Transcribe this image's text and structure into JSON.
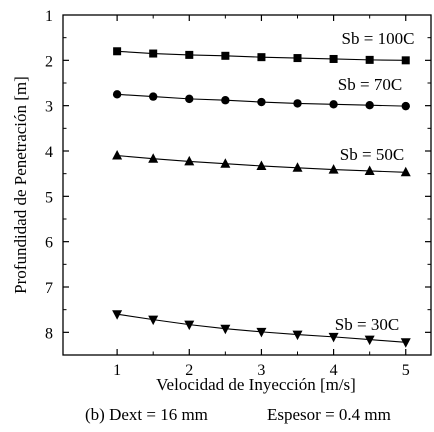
{
  "chart_data": {
    "type": "line",
    "title": "",
    "xlabel": "Velocidad de Inyección [m/s]",
    "ylabel": "Profundidad de Penetración [m]",
    "xlim": [
      0.25,
      5.35
    ],
    "ylim": [
      1,
      8.5
    ],
    "y_inverted": true,
    "x_ticks": [
      1,
      2,
      3,
      4,
      5
    ],
    "y_ticks": [
      1,
      2,
      3,
      4,
      5,
      6,
      7,
      8
    ],
    "grid": false,
    "legend": "inline labels beside each series",
    "x": [
      1,
      1.5,
      2,
      2.5,
      3,
      3.5,
      4,
      4.5,
      5
    ],
    "series": [
      {
        "name": "Sb = 100C",
        "marker": "square",
        "values": [
          1.8,
          1.85,
          1.88,
          1.9,
          1.93,
          1.95,
          1.97,
          1.99,
          2.0
        ]
      },
      {
        "name": "Sb = 70C",
        "marker": "circle",
        "values": [
          2.75,
          2.8,
          2.85,
          2.88,
          2.92,
          2.95,
          2.97,
          2.99,
          3.01
        ]
      },
      {
        "name": "Sb = 50C",
        "marker": "triangle-up",
        "values": [
          4.1,
          4.17,
          4.23,
          4.28,
          4.33,
          4.37,
          4.41,
          4.44,
          4.47
        ]
      },
      {
        "name": "Sb = 30C",
        "marker": "triangle-down",
        "values": [
          7.6,
          7.72,
          7.83,
          7.92,
          7.99,
          8.05,
          8.1,
          8.16,
          8.22
        ]
      }
    ]
  },
  "caption": {
    "left": "(b) Dext  = 16 mm",
    "right": "Espesor = 0.4 mm"
  }
}
